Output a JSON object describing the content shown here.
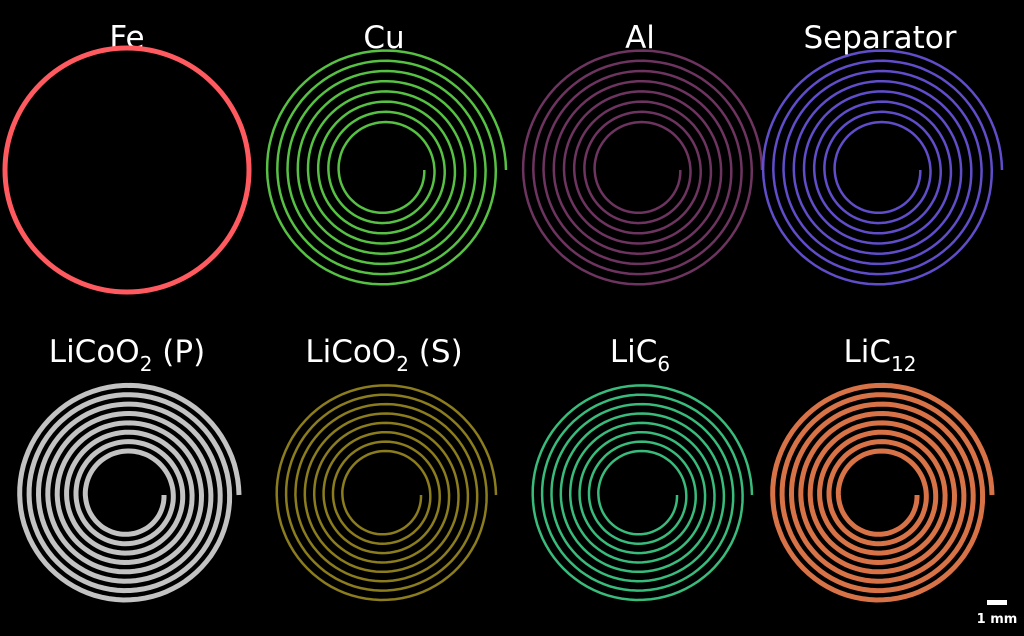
{
  "panels": [
    {
      "label": "Fe",
      "color": "#ff5a5f",
      "kind": "ring"
    },
    {
      "label": "Cu",
      "color": "#5fd64a",
      "kind": "spiral"
    },
    {
      "label": "Al",
      "color": "#7a3a6a",
      "kind": "spiral"
    },
    {
      "label": "Separator",
      "color": "#6a55e0",
      "kind": "spiral"
    },
    {
      "label": "LiCoO",
      "sub": "2",
      "suffix": " (P)",
      "color": "#d8d8d8",
      "kind": "spiral"
    },
    {
      "label": "LiCoO",
      "sub": "2",
      "suffix": " (S)",
      "color": "#9a8a20",
      "kind": "spiral"
    },
    {
      "label": "LiC",
      "sub": "6",
      "color": "#3fcf8a",
      "kind": "spiral"
    },
    {
      "label": "LiC",
      "sub": "12",
      "color": "#f08050",
      "kind": "spiral"
    }
  ],
  "scale_bar": "1 mm"
}
